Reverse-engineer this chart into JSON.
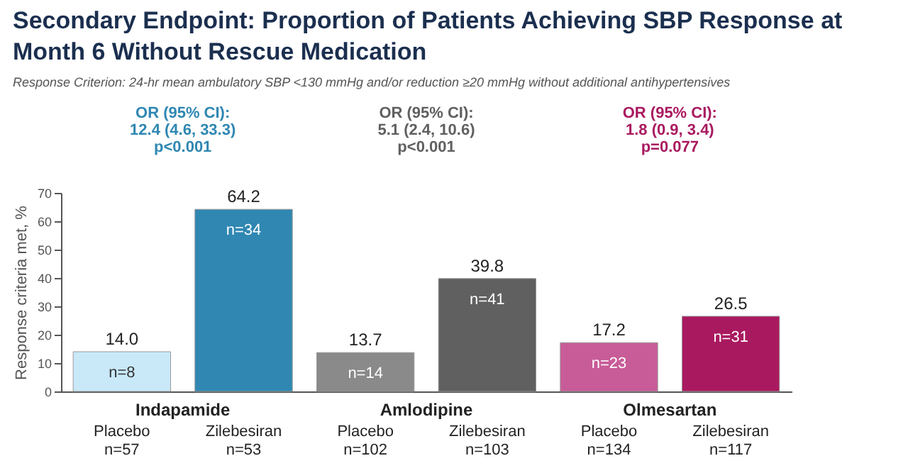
{
  "chart_data": {
    "type": "bar",
    "title": "Secondary Endpoint: Proportion of Patients Achieving SBP Response at\nMonth 6 Without Rescue Medication",
    "subtitle": "Response Criterion: 24-hr mean ambulatory SBP <130 mmHg and/or reduction ≥20 mmHg without additional antihypertensives",
    "ylabel": "Response criteria met, %",
    "categories": [
      "Placebo\nn=57",
      "Zilebesiran\nn=53",
      "Placebo\nn=102",
      "Zilebesiran\nn=103",
      "Placebo\nn=134",
      "Zilebesiran\nn=117"
    ],
    "values": [
      14.0,
      64.2,
      13.7,
      39.8,
      17.2,
      26.5
    ],
    "value_labels": [
      "14.0",
      "64.2",
      "13.7",
      "39.8",
      "17.2",
      "26.5"
    ],
    "colors": [
      "#c9e9f9",
      "#2f87b2",
      "#8a8a8a",
      "#606060",
      "#c85c98",
      "#a9195f"
    ],
    "ylim": [
      0,
      70
    ],
    "yticks": [
      0,
      10,
      20,
      30,
      40,
      50,
      60,
      70
    ],
    "annotations": [
      "Indapamide",
      "Amlodipine",
      "Olmesartan",
      "OR (95% CI):\n12.4 (4.6, 33.3)\np<0.001",
      "OR (95% CI):\n5.1 (2.4, 10.6)\np<0.001",
      "OR (95% CI):\n1.8 (0.9, 3.4)\np=0.077",
      "n=8",
      "n=34",
      "n=14",
      "n=41",
      "n=23",
      "n=31"
    ]
  }
}
